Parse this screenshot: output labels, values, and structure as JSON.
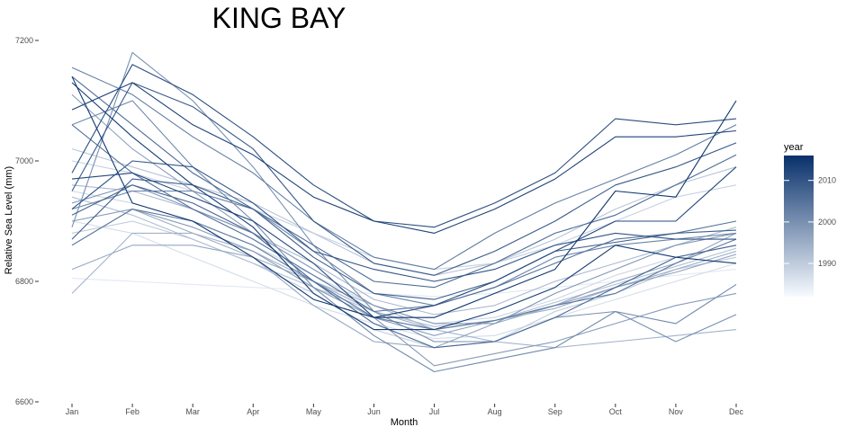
{
  "chart_data": {
    "type": "line",
    "title": "KING BAY",
    "xlabel": "Month",
    "ylabel": "Relative Sea Level (mm)",
    "categories": [
      "Jan",
      "Feb",
      "Mar",
      "Apr",
      "May",
      "Jun",
      "Jul",
      "Aug",
      "Sep",
      "Oct",
      "Nov",
      "Dec"
    ],
    "y_ticks": [
      6600,
      6800,
      7000,
      7200
    ],
    "ylim": [
      6600,
      7200
    ],
    "legend": {
      "title": "year",
      "ticks": [
        1990,
        2000,
        2010
      ],
      "range": [
        1982,
        2016
      ],
      "placement": "right",
      "color_low": "#f7fbff",
      "color_high": "#08306b"
    },
    "grid": false,
    "series": [
      {
        "year": 1985,
        "values": [
          6805,
          6800,
          6795,
          6790,
          6785,
          6780,
          6775,
          6780,
          6790,
          6800,
          6810,
          6820
        ]
      },
      {
        "year": 1987,
        "values": [
          6900,
          6880,
          6840,
          6800,
          6760,
          6730,
          6705,
          6710,
          6740,
          6770,
          6800,
          6830
        ]
      },
      {
        "year": 1988,
        "values": [
          6950,
          6930,
          6900,
          6860,
          6810,
          6760,
          6730,
          6740,
          6770,
          6810,
          6840,
          6860
        ]
      },
      {
        "year": 1989,
        "values": [
          7000,
          6980,
          6950,
          6920,
          6880,
          6840,
          6820,
          6830,
          6860,
          6900,
          6940,
          6960
        ]
      },
      {
        "year": 1990,
        "values": [
          6880,
          6900,
          6870,
          6830,
          6780,
          6720,
          6690,
          6700,
          6750,
          6780,
          6820,
          6840
        ]
      },
      {
        "year": 1991,
        "values": [
          7020,
          6990,
          6960,
          6930,
          6880,
          6830,
          6810,
          6830,
          6870,
          6920,
          6960,
          6990
        ]
      },
      {
        "year": 1992,
        "values": [
          6940,
          6910,
          6870,
          6830,
          6790,
          6750,
          6725,
          6735,
          6765,
          6795,
          6825,
          6855
        ]
      },
      {
        "year": 1993,
        "values": [
          6960,
          6950,
          6920,
          6880,
          6830,
          6770,
          6745,
          6760,
          6800,
          6830,
          6860,
          6890
        ]
      },
      {
        "year": 1994,
        "values": [
          6780,
          6880,
          6880,
          6850,
          6800,
          6760,
          6720,
          6700,
          6690,
          6700,
          6710,
          6720
        ]
      },
      {
        "year": 1995,
        "values": [
          6860,
          6920,
          6880,
          6840,
          6800,
          6750,
          6720,
          6735,
          6755,
          6790,
          6820,
          6850
        ]
      },
      {
        "year": 1996,
        "values": [
          6820,
          6860,
          6860,
          6840,
          6760,
          6700,
          6690,
          6730,
          6760,
          6800,
          6830,
          6880
        ]
      },
      {
        "year": 1997,
        "values": [
          7110,
          7020,
          6950,
          6880,
          6800,
          6740,
          6710,
          6735,
          6760,
          6790,
          6815,
          6845
        ]
      },
      {
        "year": 1998,
        "values": [
          6900,
          6920,
          6890,
          6850,
          6790,
          6740,
          6660,
          6680,
          6700,
          6730,
          6760,
          6780
        ]
      },
      {
        "year": 1999,
        "values": [
          6930,
          6960,
          6920,
          6880,
          6820,
          6760,
          6730,
          6730,
          6780,
          6820,
          6860,
          6880
        ]
      },
      {
        "year": 2000,
        "values": [
          6890,
          7180,
          7100,
          6990,
          6860,
          6750,
          6700,
          6700,
          6740,
          6750,
          6700,
          6745
        ]
      },
      {
        "year": 2001,
        "values": [
          7060,
          7100,
          6990,
          6900,
          6790,
          6710,
          6650,
          6670,
          6690,
          6750,
          6730,
          6795
        ]
      },
      {
        "year": 2002,
        "values": [
          6920,
          6950,
          6950,
          6920,
          6850,
          6780,
          6760,
          6790,
          6840,
          6860,
          6870,
          6880
        ]
      },
      {
        "year": 2003,
        "values": [
          7155,
          7110,
          7040,
          6980,
          6900,
          6840,
          6820,
          6880,
          6930,
          6970,
          7010,
          7060
        ]
      },
      {
        "year": 2004,
        "values": [
          6860,
          6920,
          6900,
          6860,
          6800,
          6740,
          6720,
          6735,
          6760,
          6780,
          6830,
          6870
        ]
      },
      {
        "year": 2005,
        "values": [
          7060,
          6980,
          6920,
          6870,
          6810,
          6750,
          6760,
          6790,
          6830,
          6870,
          6880,
          6900
        ]
      },
      {
        "year": 2006,
        "values": [
          7140,
          7060,
          6980,
          6920,
          6860,
          6800,
          6790,
          6830,
          6880,
          6910,
          6960,
          7010
        ]
      },
      {
        "year": 2007,
        "values": [
          6910,
          6960,
          6930,
          6880,
          6800,
          6730,
          6690,
          6700,
          6740,
          6790,
          6840,
          6860
        ]
      },
      {
        "year": 2008,
        "values": [
          6870,
          6970,
          6960,
          6920,
          6840,
          6780,
          6770,
          6800,
          6850,
          6865,
          6880,
          6885
        ]
      },
      {
        "year": 2009,
        "values": [
          6950,
          7130,
          7090,
          7020,
          6900,
          6830,
          6810,
          6850,
          6900,
          6960,
          6990,
          7030
        ]
      },
      {
        "year": 2010,
        "values": [
          6920,
          7000,
          6990,
          6930,
          6850,
          6820,
          6800,
          6820,
          6860,
          6880,
          6870,
          6870
        ]
      },
      {
        "year": 2011,
        "values": [
          6980,
          7160,
          7110,
          7040,
          6960,
          6900,
          6890,
          6930,
          6980,
          7070,
          7060,
          7070
        ]
      },
      {
        "year": 2012,
        "values": [
          6970,
          6980,
          6940,
          6900,
          6830,
          6740,
          6760,
          6800,
          6850,
          6900,
          6900,
          6990
        ]
      },
      {
        "year": 2013,
        "values": [
          7085,
          7130,
          7060,
          7010,
          6940,
          6900,
          6880,
          6920,
          6970,
          7040,
          7040,
          7050
        ]
      },
      {
        "year": 2014,
        "values": [
          7130,
          7040,
          6960,
          6890,
          6780,
          6720,
          6720,
          6750,
          6790,
          6860,
          6840,
          6830
        ]
      },
      {
        "year": 2015,
        "values": [
          7140,
          6930,
          6900,
          6840,
          6770,
          6740,
          6740,
          6780,
          6820,
          6950,
          6940,
          7100
        ]
      }
    ]
  }
}
